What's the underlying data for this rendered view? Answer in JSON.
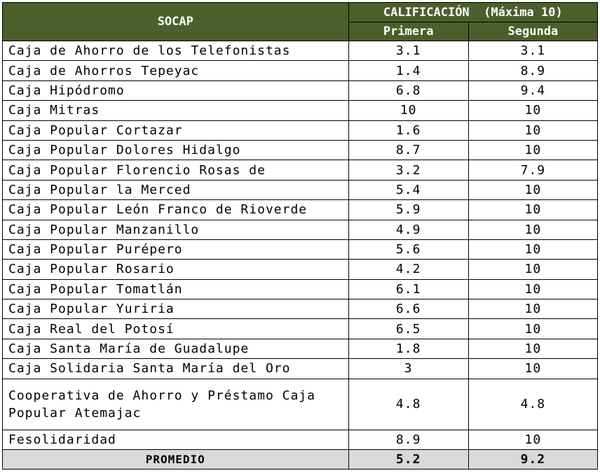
{
  "headers": {
    "socap": "SOCAP",
    "calificacion": "CALIFICACIÓN  (Máxima 10)",
    "primera": "Primera",
    "segunda": "Segunda"
  },
  "rows": [
    {
      "name": "Caja de Ahorro de los Telefonistas",
      "primera": "3.1",
      "segunda": "3.1"
    },
    {
      "name": "Caja de Ahorros Tepeyac",
      "primera": "1.4",
      "segunda": "8.9"
    },
    {
      "name": "Caja Hipódromo",
      "primera": "6.8",
      "segunda": "9.4"
    },
    {
      "name": "Caja Mitras",
      "primera": "10",
      "segunda": "10"
    },
    {
      "name": "Caja Popular Cortazar",
      "primera": "1.6",
      "segunda": "10"
    },
    {
      "name": "Caja Popular Dolores Hidalgo",
      "primera": "8.7",
      "segunda": "10"
    },
    {
      "name": "Caja Popular Florencio Rosas de",
      "primera": "3.2",
      "segunda": "7.9"
    },
    {
      "name": "Caja Popular la Merced",
      "primera": "5.4",
      "segunda": "10"
    },
    {
      "name": "Caja Popular León Franco de Rioverde",
      "primera": "5.9",
      "segunda": "10"
    },
    {
      "name": "Caja Popular Manzanillo",
      "primera": "4.9",
      "segunda": "10"
    },
    {
      "name": "Caja Popular Purépero",
      "primera": "5.6",
      "segunda": "10"
    },
    {
      "name": "Caja Popular Rosario",
      "primera": "4.2",
      "segunda": "10"
    },
    {
      "name": "Caja Popular Tomatlán",
      "primera": "6.1",
      "segunda": "10"
    },
    {
      "name": "Caja Popular Yuriria",
      "primera": "6.6",
      "segunda": "10"
    },
    {
      "name": "Caja Real del Potosí",
      "primera": "6.5",
      "segunda": "10"
    },
    {
      "name": "Caja Santa María de Guadalupe",
      "primera": "1.8",
      "segunda": "10"
    },
    {
      "name": "Caja Solidaria Santa María del Oro",
      "primera": "3",
      "segunda": "10"
    },
    {
      "name": "Cooperativa de Ahorro y Préstamo Caja Popular Atemajac",
      "primera": "4.8",
      "segunda": "4.8"
    },
    {
      "name": "Fesolidaridad",
      "primera": "8.9",
      "segunda": "10"
    }
  ],
  "average": {
    "label": "PROMEDIO",
    "primera": "5.2",
    "segunda": "9.2"
  },
  "colors": {
    "header_bg": "#4a5f2b",
    "header_text": "#ffffff",
    "average_bg": "#d9d9d9"
  }
}
